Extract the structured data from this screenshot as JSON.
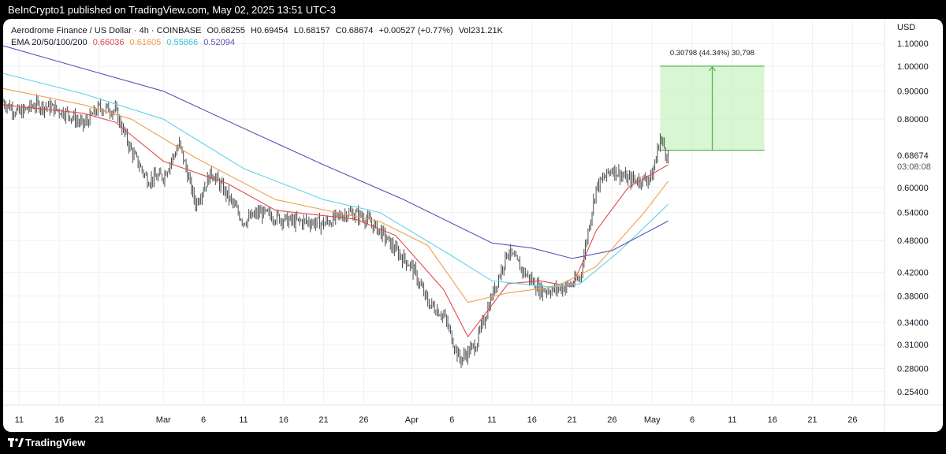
{
  "header": {
    "published_text": "BeInCrypto1 published on TradingView.com, May 02, 2025 13:51 UTC-3"
  },
  "footer": {
    "brand": "TradingView",
    "logo_icon": "tradingview-logo-icon"
  },
  "legend": {
    "symbol": "Aerodrome Finance / US Dollar · 4h · COINBASE",
    "o_label": "O",
    "o": "0.68255",
    "h_label": "H",
    "h": "0.69454",
    "l_label": "L",
    "l": "0.68157",
    "c_label": "C",
    "c": "0.68674",
    "change": "+0.00527 (+0.77%)",
    "vol_label": "Vol",
    "vol": "231.21K",
    "ema_label": "EMA 20/50/100/200",
    "ema_values": [
      "0.66036",
      "0.61605",
      "0.55866",
      "0.52094"
    ]
  },
  "chart_data": {
    "type": "line",
    "currency": "USD",
    "scale": "log",
    "ylim": [
      0.24,
      1.22
    ],
    "y_ticks": [
      1.1,
      1.0,
      0.9,
      0.8,
      0.6,
      0.54,
      0.48,
      0.42,
      0.38,
      0.34,
      0.31,
      0.28,
      0.254
    ],
    "y_tick_labels": [
      "1.10000",
      "1.00000",
      "0.90000",
      "0.80000",
      "0.60000",
      "0.54000",
      "0.48000",
      "0.42000",
      "0.38000",
      "0.34000",
      "0.31000",
      "0.28000",
      "0.25400"
    ],
    "x_range": [
      "2025-02-09",
      "2025-02-28 + 59d"
    ],
    "x_ticks": [
      {
        "date": "2025-02-11",
        "label": "11"
      },
      {
        "date": "2025-02-16",
        "label": "16"
      },
      {
        "date": "2025-02-21",
        "label": "21"
      },
      {
        "date": "2025-03-01",
        "label": "Mar"
      },
      {
        "date": "2025-03-06",
        "label": "6"
      },
      {
        "date": "2025-03-11",
        "label": "11"
      },
      {
        "date": "2025-03-16",
        "label": "16"
      },
      {
        "date": "2025-03-21",
        "label": "21"
      },
      {
        "date": "2025-03-26",
        "label": "26"
      },
      {
        "date": "2025-04-01",
        "label": "Apr"
      },
      {
        "date": "2025-04-06",
        "label": "6"
      },
      {
        "date": "2025-04-11",
        "label": "11"
      },
      {
        "date": "2025-04-16",
        "label": "16"
      },
      {
        "date": "2025-04-21",
        "label": "21"
      },
      {
        "date": "2025-04-26",
        "label": "26"
      },
      {
        "date": "2025-05-01",
        "label": "May"
      },
      {
        "date": "2025-05-06",
        "label": "6"
      },
      {
        "date": "2025-05-11",
        "label": "11"
      },
      {
        "date": "2025-05-16",
        "label": "16"
      },
      {
        "date": "2025-05-21",
        "label": "21"
      },
      {
        "date": "2025-05-26",
        "label": "26"
      }
    ],
    "price_path": [
      [
        "2025-02-09",
        0.86
      ],
      [
        "2025-02-11",
        0.82
      ],
      [
        "2025-02-13",
        0.85
      ],
      [
        "2025-02-15",
        0.84
      ],
      [
        "2025-02-17",
        0.82
      ],
      [
        "2025-02-19",
        0.78
      ],
      [
        "2025-02-21",
        0.84
      ],
      [
        "2025-02-23",
        0.83
      ],
      [
        "2025-02-25",
        0.7
      ],
      [
        "2025-02-27",
        0.62
      ],
      [
        "2025-03-01",
        0.63
      ],
      [
        "2025-03-03",
        0.72
      ],
      [
        "2025-03-05",
        0.56
      ],
      [
        "2025-03-07",
        0.64
      ],
      [
        "2025-03-09",
        0.58
      ],
      [
        "2025-03-11",
        0.52
      ],
      [
        "2025-03-13",
        0.54
      ],
      [
        "2025-03-15",
        0.53
      ],
      [
        "2025-03-17",
        0.52
      ],
      [
        "2025-03-19",
        0.52
      ],
      [
        "2025-03-21",
        0.515
      ],
      [
        "2025-03-24",
        0.54
      ],
      [
        "2025-03-26",
        0.53
      ],
      [
        "2025-03-28",
        0.5
      ],
      [
        "2025-03-30",
        0.46
      ],
      [
        "2025-04-01",
        0.43
      ],
      [
        "2025-04-03",
        0.37
      ],
      [
        "2025-04-05",
        0.35
      ],
      [
        "2025-04-07",
        0.29
      ],
      [
        "2025-04-09",
        0.31
      ],
      [
        "2025-04-11",
        0.38
      ],
      [
        "2025-04-13",
        0.46
      ],
      [
        "2025-04-15",
        0.42
      ],
      [
        "2025-04-17",
        0.39
      ],
      [
        "2025-04-19",
        0.39
      ],
      [
        "2025-04-21",
        0.4
      ],
      [
        "2025-04-22",
        0.41
      ],
      [
        "2025-04-23",
        0.5
      ],
      [
        "2025-04-24",
        0.6
      ],
      [
        "2025-04-26",
        0.65
      ],
      [
        "2025-04-28",
        0.62
      ],
      [
        "2025-04-30",
        0.62
      ],
      [
        "2025-05-01",
        0.63
      ],
      [
        "2025-05-02",
        0.74
      ],
      [
        "2025-05-03",
        0.68
      ]
    ],
    "series": [
      {
        "name": "EMA 20",
        "color": "#e0494d",
        "last_value": 0.66036,
        "values": [
          [
            "2025-02-09",
            0.85
          ],
          [
            "2025-02-19",
            0.82
          ],
          [
            "2025-02-23",
            0.79
          ],
          [
            "2025-03-01",
            0.67
          ],
          [
            "2025-03-09",
            0.61
          ],
          [
            "2025-03-15",
            0.545
          ],
          [
            "2025-03-25",
            0.525
          ],
          [
            "2025-03-30",
            0.49
          ],
          [
            "2025-04-05",
            0.39
          ],
          [
            "2025-04-08",
            0.32
          ],
          [
            "2025-04-13",
            0.4
          ],
          [
            "2025-04-17",
            0.405
          ],
          [
            "2025-04-21",
            0.395
          ],
          [
            "2025-04-24",
            0.5
          ],
          [
            "2025-04-28",
            0.6
          ],
          [
            "2025-05-03",
            0.66
          ]
        ]
      },
      {
        "name": "EMA 50",
        "color": "#f0a04b",
        "last_value": 0.61605,
        "values": [
          [
            "2025-02-09",
            0.91
          ],
          [
            "2025-02-19",
            0.85
          ],
          [
            "2025-02-25",
            0.8
          ],
          [
            "2025-03-05",
            0.68
          ],
          [
            "2025-03-15",
            0.57
          ],
          [
            "2025-03-28",
            0.52
          ],
          [
            "2025-04-03",
            0.47
          ],
          [
            "2025-04-08",
            0.37
          ],
          [
            "2025-04-13",
            0.385
          ],
          [
            "2025-04-19",
            0.395
          ],
          [
            "2025-04-24",
            0.43
          ],
          [
            "2025-04-30",
            0.54
          ],
          [
            "2025-05-03",
            0.616
          ]
        ]
      },
      {
        "name": "EMA 100",
        "color": "#5ed3ea",
        "last_value": 0.55866,
        "values": [
          [
            "2025-02-09",
            0.97
          ],
          [
            "2025-02-19",
            0.89
          ],
          [
            "2025-03-01",
            0.8
          ],
          [
            "2025-03-11",
            0.65
          ],
          [
            "2025-03-21",
            0.57
          ],
          [
            "2025-03-28",
            0.54
          ],
          [
            "2025-04-06",
            0.45
          ],
          [
            "2025-04-11",
            0.405
          ],
          [
            "2025-04-18",
            0.395
          ],
          [
            "2025-04-22",
            0.4
          ],
          [
            "2025-04-27",
            0.46
          ],
          [
            "2025-05-03",
            0.559
          ]
        ]
      },
      {
        "name": "EMA 200",
        "color": "#5a53b8",
        "last_value": 0.52094,
        "values": [
          [
            "2025-02-09",
            1.09
          ],
          [
            "2025-02-19",
            0.99
          ],
          [
            "2025-03-01",
            0.9
          ],
          [
            "2025-03-11",
            0.77
          ],
          [
            "2025-03-21",
            0.66
          ],
          [
            "2025-03-31",
            0.57
          ],
          [
            "2025-04-11",
            0.475
          ],
          [
            "2025-04-16",
            0.465
          ],
          [
            "2025-04-21",
            0.445
          ],
          [
            "2025-04-26",
            0.46
          ],
          [
            "2025-05-03",
            0.521
          ]
        ]
      }
    ],
    "current_price": {
      "value": 0.68674,
      "label": "0.68674",
      "countdown": "03:08:08",
      "color": "#131722"
    },
    "measure_box": {
      "from_date": "2025-05-02",
      "to_date": "2025-05-15",
      "from_price": 0.702,
      "to_price": 1.0,
      "label": "0.30798 (44.34%) 30,798",
      "color": "#4caf50",
      "fill": "#c9f3c1"
    }
  }
}
